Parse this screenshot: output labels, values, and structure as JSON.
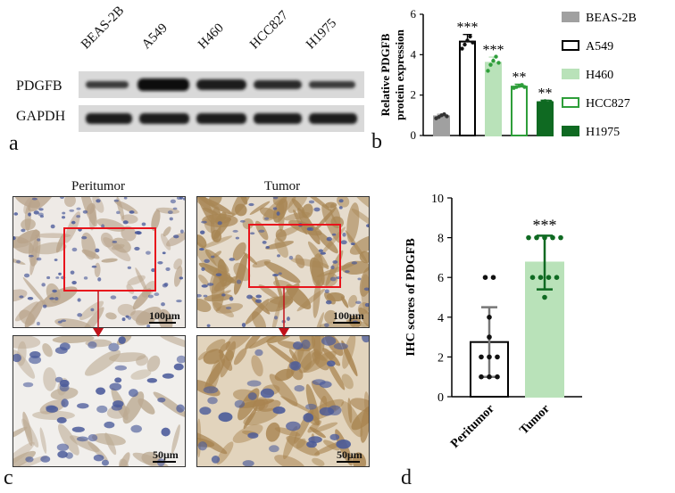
{
  "panel_letters": {
    "a": "a",
    "b": "b",
    "c": "c",
    "d": "d"
  },
  "blot": {
    "lanes": [
      "BEAS-2B",
      "A549",
      "H460",
      "HCC827",
      "H1975"
    ],
    "rows": [
      "PDGFB",
      "GAPDH"
    ]
  },
  "ihc": {
    "titles": [
      "Peritumor",
      "Tumor"
    ],
    "scale_top": "100μm",
    "scale_bottom": "50μm"
  },
  "colors": {
    "black": "#000000",
    "light_green": "#b9e2b9",
    "mid_green": "#2e9e3a",
    "dark_green": "#0f6a22",
    "gray": "#a0a0a0"
  },
  "chart_data": [
    {
      "type": "bar",
      "categories": [
        "BEAS-2B",
        "A549",
        "H460",
        "HCC827",
        "H1975"
      ],
      "values": [
        0.95,
        4.65,
        3.6,
        2.42,
        1.65
      ],
      "errors": [
        0.1,
        0.35,
        0.28,
        0.12,
        0.1
      ],
      "points": [
        [
          0.85,
          0.92,
          1.0,
          1.05,
          0.95
        ],
        [
          4.3,
          4.5,
          4.7,
          4.9,
          4.6
        ],
        [
          3.2,
          3.5,
          3.7,
          3.9,
          3.6
        ],
        [
          2.35,
          2.4,
          2.45,
          2.5,
          2.4
        ],
        [
          1.6,
          1.65,
          1.7,
          1.62,
          1.68
        ]
      ],
      "significance": [
        "",
        "***",
        "***",
        "**",
        "**"
      ],
      "legend": [
        "BEAS-2B",
        "A549",
        "H460",
        "HCC827",
        "H1975"
      ],
      "title": "",
      "xlabel": "",
      "ylabel": "Relative PDGFB protein expression",
      "ylabel_lines": [
        "Relative PDGFB",
        "protein expression"
      ],
      "ylim": [
        0,
        6
      ],
      "yticks": [
        "0",
        "2",
        "4",
        "6"
      ],
      "legend_position": "right"
    },
    {
      "type": "bar",
      "categories": [
        "Peritumor",
        "Tumor"
      ],
      "values": [
        2.75,
        6.75
      ],
      "errors": [
        1.75,
        1.35
      ],
      "points": [
        [
          6.0,
          6.0,
          4.0,
          3.0,
          2.0,
          2.0,
          2.0,
          1.0,
          1.0,
          1.0
        ],
        [
          8.0,
          8.0,
          8.0,
          8.0,
          8.0,
          6.0,
          6.0,
          6.0,
          6.0,
          5.0
        ]
      ],
      "significance": [
        "",
        "***"
      ],
      "title": "",
      "xlabel": "",
      "ylabel": "IHC scores of PDGFB",
      "ylim": [
        0,
        10
      ],
      "yticks": [
        "0",
        "2",
        "4",
        "6",
        "8",
        "10"
      ],
      "legend_position": "none"
    }
  ]
}
